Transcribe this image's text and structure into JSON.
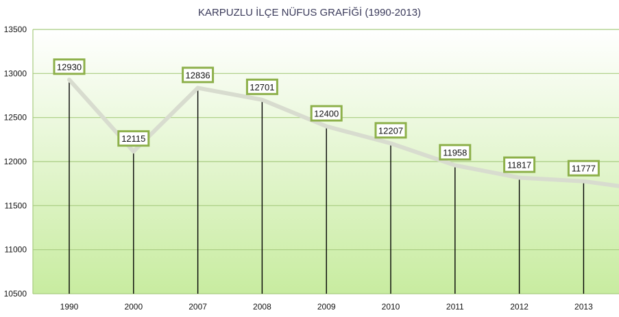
{
  "chart_data": {
    "type": "line",
    "title": "KARPUZLU İLÇE NÜFUS GRAFİĞİ (1990-2013)",
    "xlabel": "",
    "ylabel": "",
    "categories": [
      "1990",
      "2000",
      "2007",
      "2008",
      "2009",
      "2010",
      "2011",
      "2012",
      "2013"
    ],
    "series": [
      {
        "values": [
          12930,
          12115,
          12836,
          12701,
          12400,
          12207,
          11958,
          11817,
          11777
        ]
      }
    ],
    "data_labels": [
      "12930",
      "12115",
      "12836",
      "12701",
      "12400",
      "12207",
      "11958",
      "11817",
      "11777"
    ],
    "ylim": [
      10500,
      13500
    ],
    "yticks": [
      10500,
      11000,
      11500,
      12000,
      12500,
      13000,
      13500
    ],
    "grid": "horizontal",
    "drop_lines": true,
    "legend": "none"
  },
  "colors": {
    "plot_top": "#ffffff",
    "plot_bottom": "#c8eca0",
    "grid": "#a8cc80",
    "series_line": "#d8dccf",
    "label_border": "#8db04a",
    "drop_line": "#000000",
    "title": "#3a3a5a"
  }
}
